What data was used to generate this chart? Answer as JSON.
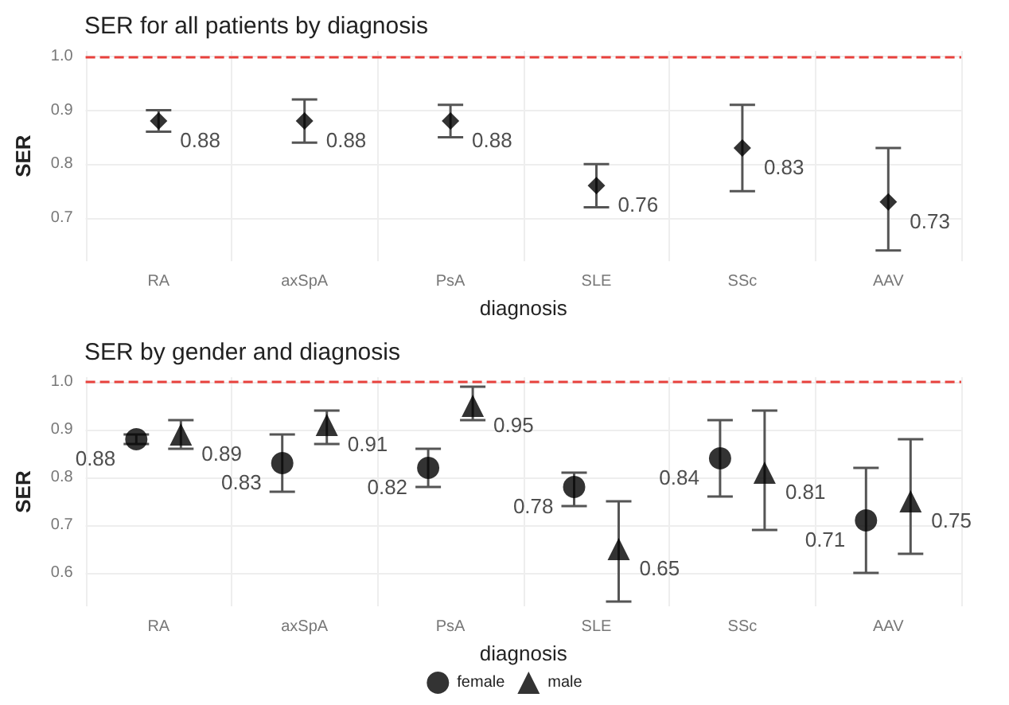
{
  "chart_data": [
    {
      "type": "scatter",
      "title": "SER for all patients by diagnosis",
      "xlabel": "diagnosis",
      "ylabel": "SER",
      "categories": [
        "RA",
        "axSpA",
        "PsA",
        "SLE",
        "SSc",
        "AAV"
      ],
      "series": [
        {
          "color": "#000000",
          "marker": "diamond",
          "values": [
            0.88,
            0.88,
            0.88,
            0.76,
            0.83,
            0.73
          ],
          "errors": [
            [
              0.86,
              0.9
            ],
            [
              0.84,
              0.92
            ],
            [
              0.85,
              0.91
            ],
            [
              0.72,
              0.8
            ],
            [
              0.75,
              0.91
            ],
            [
              0.64,
              0.83
            ]
          ]
        }
      ],
      "ylim": [
        0.62,
        1.01
      ],
      "yticks": [
        0.7,
        0.8,
        0.9,
        {
          "value": 1,
          "label": "1.0"
        }
      ],
      "grid": true,
      "ref_lines": [
        {
          "axis": "y",
          "value": 1,
          "color": "#e8413c",
          "line_style": "dashed"
        }
      ],
      "data_labels": true
    },
    {
      "type": "scatter",
      "title": "SER by gender and diagnosis",
      "xlabel": "diagnosis",
      "ylabel": "SER",
      "categories": [
        "RA",
        "axSpA",
        "PsA",
        "SLE",
        "SSc",
        "AAV"
      ],
      "series": [
        {
          "name": "female",
          "color": "#000000",
          "marker": "circle",
          "values": [
            0.88,
            0.83,
            0.82,
            0.78,
            0.84,
            0.71
          ],
          "errors": [
            [
              0.87,
              0.89
            ],
            [
              0.77,
              0.89
            ],
            [
              0.78,
              0.86
            ],
            [
              0.74,
              0.81
            ],
            [
              0.76,
              0.92
            ],
            [
              0.6,
              0.82
            ]
          ]
        },
        {
          "name": "male",
          "color": "#000000",
          "marker": "triangle",
          "values": [
            0.89,
            0.91,
            0.95,
            0.65,
            0.81,
            0.75
          ],
          "errors": [
            [
              0.86,
              0.92
            ],
            [
              0.87,
              0.94
            ],
            [
              0.92,
              0.99
            ],
            [
              0.54,
              0.75
            ],
            [
              0.69,
              0.94
            ],
            [
              0.64,
              0.88
            ]
          ]
        }
      ],
      "ylim": [
        0.53,
        1.01
      ],
      "yticks": [
        0.6,
        0.7,
        0.8,
        0.9,
        {
          "value": 1,
          "label": "1.0"
        }
      ],
      "grid": true,
      "legend": "bottom",
      "ref_lines": [
        {
          "axis": "y",
          "value": 1,
          "color": "#e8413c",
          "line_style": "dashed"
        }
      ],
      "data_labels": true
    }
  ]
}
